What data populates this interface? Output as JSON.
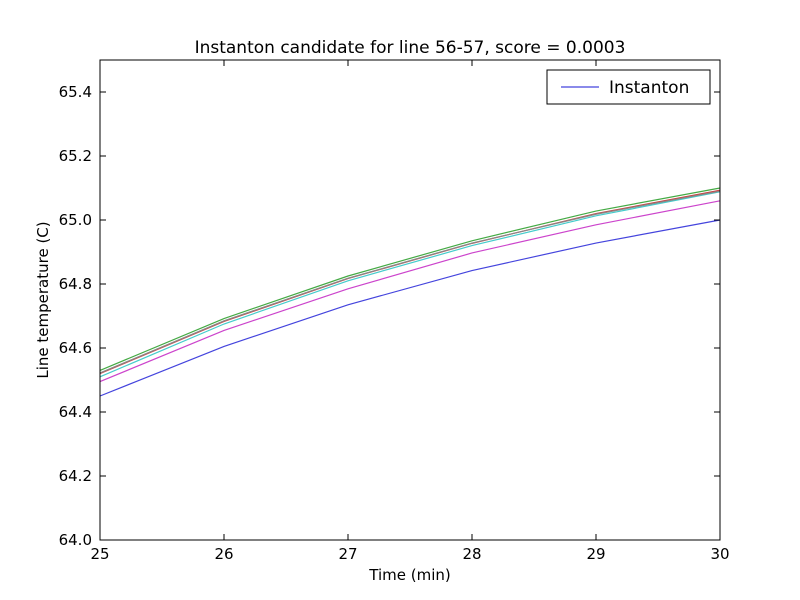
{
  "chart_data": {
    "type": "line",
    "title": "Instanton candidate for line 56-57, score = 0.0003",
    "xlabel": "Time (min)",
    "ylabel": "Line temperature (C)",
    "xlim": [
      25,
      30
    ],
    "ylim": [
      64.0,
      65.5
    ],
    "x": [
      25,
      26,
      27,
      28,
      29,
      30
    ],
    "xticks": [
      "25",
      "26",
      "27",
      "28",
      "29",
      "30"
    ],
    "yticks": [
      "64.0",
      "64.2",
      "64.4",
      "64.6",
      "64.8",
      "65.0",
      "65.2",
      "65.4"
    ],
    "ytick_values": [
      64.0,
      64.2,
      64.4,
      64.6,
      64.8,
      65.0,
      65.2,
      65.4
    ],
    "grid": false,
    "legend": {
      "position": "top-right",
      "entries": [
        "Instanton"
      ]
    },
    "series": [
      {
        "name": "Instanton",
        "color": "#4444dd",
        "values": [
          64.45,
          64.605,
          64.735,
          64.842,
          64.928,
          65.0
        ]
      },
      {
        "color": "#cc44cc",
        "values": [
          64.495,
          64.655,
          64.785,
          64.897,
          64.985,
          65.06
        ]
      },
      {
        "color": "#44cccc",
        "values": [
          64.51,
          64.675,
          64.81,
          64.92,
          65.013,
          65.088
        ]
      },
      {
        "color": "#cc4444",
        "values": [
          64.52,
          64.683,
          64.817,
          64.927,
          65.02,
          65.093
        ]
      },
      {
        "color": "#888888",
        "values": [
          64.522,
          64.685,
          64.818,
          64.928,
          65.018,
          65.09
        ]
      },
      {
        "color": "#44aa44",
        "values": [
          64.53,
          64.692,
          64.825,
          64.935,
          65.028,
          65.1
        ]
      }
    ]
  }
}
